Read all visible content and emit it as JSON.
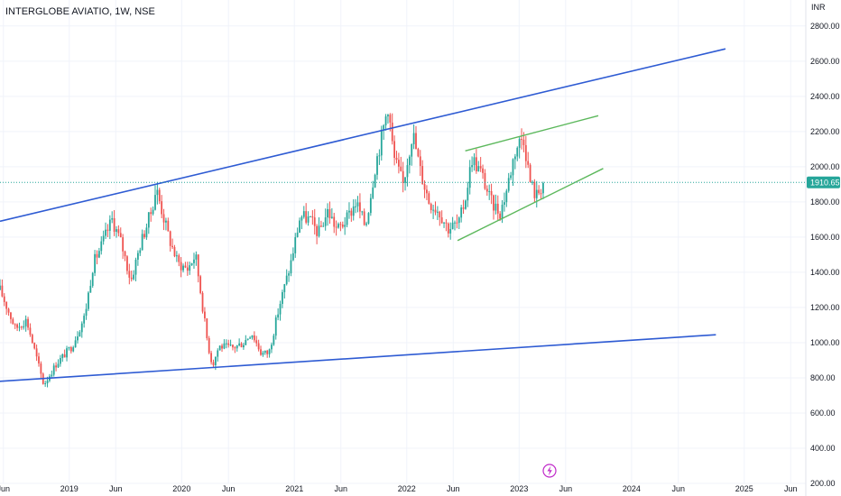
{
  "header": {
    "title": "INTERGLOBE AVIATIO, 1W, NSE"
  },
  "icons": {
    "bolt": "lightning-bolt-icon"
  },
  "colors": {
    "up": "#26a69a",
    "down": "#ef5350",
    "trendline": "#2e5bd3",
    "channel": "#5cb85c",
    "grid": "#f0f3fa",
    "last_price": "#26a69a"
  },
  "chart_data": {
    "type": "candlestick",
    "currency": "INR",
    "y_axis": {
      "range": [
        200,
        2840
      ],
      "ticks": [
        200,
        400,
        600,
        800,
        1000,
        1200,
        1400,
        1600,
        1800,
        2000,
        2200,
        2400,
        2600,
        2800
      ],
      "tick_labels": [
        "200.00",
        "400.00",
        "600.00",
        "800.00",
        "1000.00",
        "1200.00",
        "1400.00",
        "1600.00",
        "1800.00",
        "2000.00",
        "2200.00",
        "2400.00",
        "2600.00",
        "2800.00"
      ]
    },
    "x_axis": {
      "range": [
        "2018-05-21",
        "2025-07-20"
      ],
      "ticks": [
        {
          "date": "2018-06-01",
          "label": "Jun"
        },
        {
          "date": "2019-01-01",
          "label": "2019"
        },
        {
          "date": "2019-06-01",
          "label": "Jun"
        },
        {
          "date": "2020-01-01",
          "label": "2020"
        },
        {
          "date": "2020-06-01",
          "label": "Jun"
        },
        {
          "date": "2021-01-01",
          "label": "2021"
        },
        {
          "date": "2021-06-01",
          "label": "Jun"
        },
        {
          "date": "2022-01-01",
          "label": "2022"
        },
        {
          "date": "2022-06-01",
          "label": "Jun"
        },
        {
          "date": "2023-01-01",
          "label": "2023"
        },
        {
          "date": "2023-06-01",
          "label": "Jun"
        },
        {
          "date": "2024-01-01",
          "label": "2024"
        },
        {
          "date": "2024-06-01",
          "label": "Jun"
        },
        {
          "date": "2025-01-01",
          "label": "2025"
        },
        {
          "date": "2025-06-01",
          "label": "Jun"
        }
      ]
    },
    "last_price": {
      "value": 1910.65,
      "label": "1910.65"
    },
    "price_path": [
      [
        "2018-05-21",
        1300
      ],
      [
        "2018-07-10",
        1080
      ],
      [
        "2018-08-15",
        1130
      ],
      [
        "2018-10-10",
        760
      ],
      [
        "2018-11-20",
        880
      ],
      [
        "2019-01-10",
        980
      ],
      [
        "2019-02-20",
        1150
      ],
      [
        "2019-03-20",
        1450
      ],
      [
        "2019-04-15",
        1550
      ],
      [
        "2019-05-20",
        1700
      ],
      [
        "2019-06-20",
        1560
      ],
      [
        "2019-07-20",
        1350
      ],
      [
        "2019-08-20",
        1560
      ],
      [
        "2019-09-25",
        1750
      ],
      [
        "2019-10-10",
        1880
      ],
      [
        "2019-11-20",
        1600
      ],
      [
        "2019-12-20",
        1450
      ],
      [
        "2020-01-20",
        1420
      ],
      [
        "2020-02-15",
        1500
      ],
      [
        "2020-03-25",
        1000
      ],
      [
        "2020-04-10",
        870
      ],
      [
        "2020-05-01",
        980
      ],
      [
        "2020-06-15",
        970
      ],
      [
        "2020-07-20",
        1000
      ],
      [
        "2020-08-15",
        1060
      ],
      [
        "2020-09-15",
        940
      ],
      [
        "2020-10-10",
        940
      ],
      [
        "2020-11-15",
        1220
      ],
      [
        "2020-12-20",
        1450
      ],
      [
        "2021-01-20",
        1720
      ],
      [
        "2021-02-20",
        1700
      ],
      [
        "2021-03-20",
        1620
      ],
      [
        "2021-04-20",
        1750
      ],
      [
        "2021-05-20",
        1640
      ],
      [
        "2021-06-20",
        1700
      ],
      [
        "2021-07-20",
        1800
      ],
      [
        "2021-08-20",
        1660
      ],
      [
        "2021-09-20",
        2000
      ],
      [
        "2021-10-15",
        2200
      ],
      [
        "2021-11-01",
        2350
      ],
      [
        "2021-11-20",
        2050
      ],
      [
        "2021-12-20",
        1900
      ],
      [
        "2022-01-20",
        2200
      ],
      [
        "2022-02-15",
        1970
      ],
      [
        "2022-03-15",
        1800
      ],
      [
        "2022-04-15",
        1750
      ],
      [
        "2022-05-15",
        1650
      ],
      [
        "2022-06-20",
        1680
      ],
      [
        "2022-07-10",
        1820
      ],
      [
        "2022-08-01",
        2050
      ],
      [
        "2022-09-01",
        1960
      ],
      [
        "2022-10-01",
        1800
      ],
      [
        "2022-11-01",
        1740
      ],
      [
        "2022-11-20",
        1860
      ],
      [
        "2022-12-20",
        2100
      ],
      [
        "2023-01-15",
        2180
      ],
      [
        "2023-02-05",
        1920
      ],
      [
        "2023-02-25",
        1830
      ],
      [
        "2023-03-20",
        1910
      ]
    ],
    "trendlines": [
      {
        "kind": "upper-channel",
        "from": [
          "2018-05-21",
          1690
        ],
        "to": [
          "2024-11-01",
          2670
        ]
      },
      {
        "kind": "lower-channel",
        "from": [
          "2018-05-21",
          780
        ],
        "to": [
          "2024-10-01",
          1045
        ]
      },
      {
        "kind": "wedge-upper",
        "from": [
          "2022-07-10",
          2090
        ],
        "to": [
          "2023-09-15",
          2290
        ]
      },
      {
        "kind": "wedge-lower",
        "from": [
          "2022-06-15",
          1580
        ],
        "to": [
          "2023-10-01",
          1990
        ]
      }
    ]
  }
}
